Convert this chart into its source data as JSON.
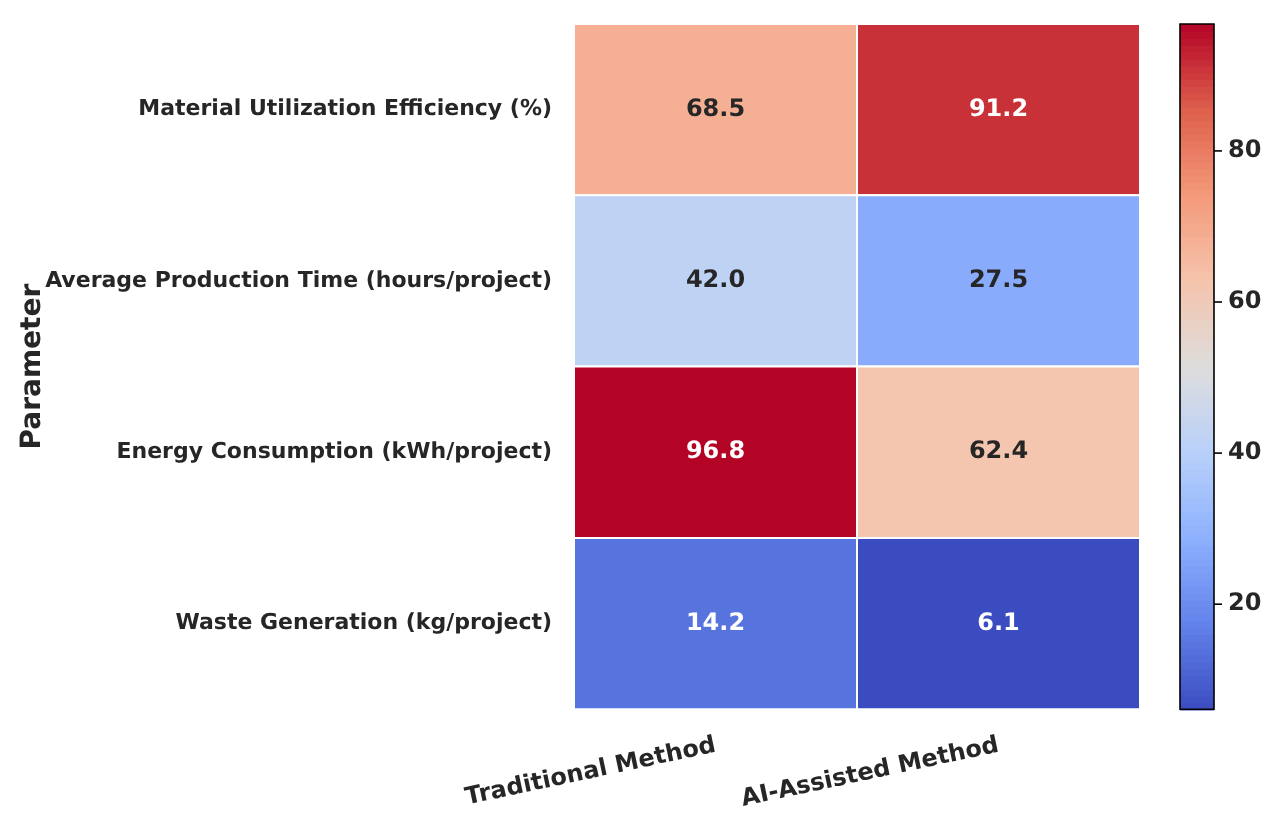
{
  "chart_data": {
    "type": "heatmap",
    "ylabel": "Parameter",
    "categories": [
      "Traditional Method",
      "AI-Assisted Method"
    ],
    "y_categories": [
      "Material Utilization Efficiency (%)",
      "Average Production Time (hours/project)",
      "Energy Consumption (kWh/project)",
      "Waste Generation (kg/project)"
    ],
    "cells": [
      [
        68.5,
        91.2
      ],
      [
        42.0,
        27.5
      ],
      [
        96.8,
        62.4
      ],
      [
        14.2,
        6.1
      ]
    ],
    "cell_labels": [
      [
        "68.5",
        "91.2"
      ],
      [
        "42.0",
        "27.5"
      ],
      [
        "96.8",
        "62.4"
      ],
      [
        "14.2",
        "6.1"
      ]
    ],
    "clim": [
      6.1,
      96.8
    ],
    "cticks": [
      20,
      40,
      60,
      80
    ],
    "data_labels": true
  }
}
